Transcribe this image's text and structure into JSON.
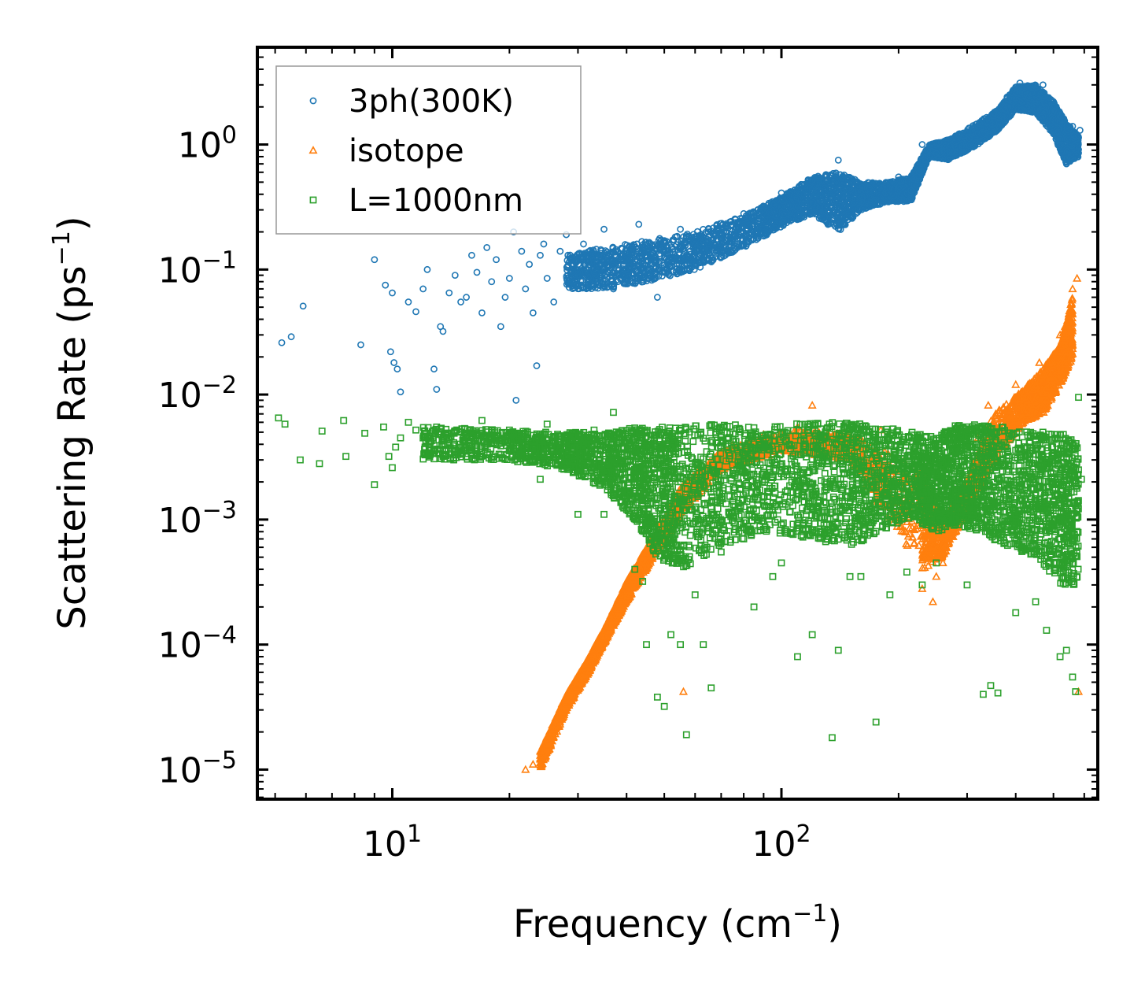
{
  "chart_data": {
    "type": "scatter",
    "title": "",
    "xlabel": "Frequency (cm",
    "xlabel_sup": "−1",
    "xlabel_end": ")",
    "ylabel": "Scattering Rate (ps",
    "ylabel_sup": "−1",
    "ylabel_end": ")",
    "xscale": "log",
    "yscale": "log",
    "xlim": [
      4.5,
      650
    ],
    "ylim": [
      5.8e-06,
      6.0
    ],
    "x_ticks": [
      {
        "value": 10,
        "base": "10",
        "exp": "1"
      },
      {
        "value": 100,
        "base": "10",
        "exp": "2"
      }
    ],
    "y_ticks": [
      {
        "value": 1,
        "base": "10",
        "exp": "0"
      },
      {
        "value": 0.1,
        "base": "10",
        "exp": "−1"
      },
      {
        "value": 0.01,
        "base": "10",
        "exp": "−2"
      },
      {
        "value": 0.001,
        "base": "10",
        "exp": "−3"
      },
      {
        "value": 0.0001,
        "base": "10",
        "exp": "−4"
      },
      {
        "value": 1e-05,
        "base": "10",
        "exp": "−5"
      }
    ],
    "legend_position": "upper-left",
    "series": [
      {
        "name": "3ph(300K)",
        "marker": "circle",
        "color": "#1f77b4",
        "points": [
          [
            5.2,
            0.026
          ],
          [
            5.5,
            0.029
          ],
          [
            5.9,
            0.051
          ],
          [
            8.3,
            0.025
          ],
          [
            9.0,
            0.12
          ],
          [
            9.6,
            0.075
          ],
          [
            9.9,
            0.022
          ],
          [
            10.0,
            0.065
          ],
          [
            10.1,
            0.018
          ],
          [
            10.3,
            0.016
          ],
          [
            10.5,
            0.0105
          ],
          [
            11.0,
            0.055
          ],
          [
            11.5,
            0.046
          ],
          [
            12.0,
            0.07
          ],
          [
            12.3,
            0.1
          ],
          [
            12.8,
            0.016
          ],
          [
            13.0,
            0.011
          ],
          [
            13.3,
            0.035
          ],
          [
            13.5,
            0.032
          ],
          [
            14.0,
            0.065
          ],
          [
            14.5,
            0.09
          ],
          [
            15.0,
            0.055
          ],
          [
            15.5,
            0.06
          ],
          [
            16.0,
            0.13
          ],
          [
            16.5,
            0.095
          ],
          [
            17.0,
            0.045
          ],
          [
            17.5,
            0.15
          ],
          [
            18.0,
            0.08
          ],
          [
            18.5,
            0.12
          ],
          [
            19.0,
            0.035
          ],
          [
            19.5,
            0.06
          ],
          [
            20.0,
            0.085
          ],
          [
            20.5,
            0.2
          ],
          [
            20.8,
            0.009
          ],
          [
            21.5,
            0.14
          ],
          [
            22.0,
            0.07
          ],
          [
            22.5,
            0.11
          ],
          [
            23.0,
            0.045
          ],
          [
            23.5,
            0.017
          ],
          [
            24.0,
            0.13
          ],
          [
            24.5,
            0.16
          ],
          [
            25.0,
            0.085
          ],
          [
            26.0,
            0.055
          ],
          [
            27.0,
            0.14
          ],
          [
            28.0,
            0.19
          ],
          [
            29.0,
            0.11
          ],
          [
            30.0,
            0.075
          ],
          [
            31.0,
            0.16
          ],
          [
            33.0,
            0.095
          ],
          [
            35.0,
            0.21
          ],
          [
            37.0,
            0.07
          ],
          [
            40.0,
            0.12
          ],
          [
            43.0,
            0.23
          ],
          [
            46.0,
            0.15
          ],
          [
            48.0,
            0.06
          ],
          [
            50.0,
            0.14
          ],
          [
            55.0,
            0.21
          ],
          [
            60.0,
            0.16
          ],
          [
            70.0,
            0.19
          ],
          [
            80.0,
            0.28
          ],
          [
            90.0,
            0.32
          ],
          [
            100.0,
            0.41
          ],
          [
            120.0,
            0.5
          ],
          [
            140.0,
            0.75
          ],
          [
            160.0,
            0.42
          ],
          [
            200.0,
            0.55
          ],
          [
            230.0,
            1.0
          ],
          [
            250.0,
            0.85
          ],
          [
            280.0,
            1.05
          ],
          [
            320.0,
            1.4
          ],
          [
            350.0,
            1.7
          ],
          [
            380.0,
            2.4
          ],
          [
            410.0,
            3.1
          ],
          [
            440.0,
            2.6
          ],
          [
            470.0,
            3.0
          ],
          [
            500.0,
            2.2
          ],
          [
            520.0,
            1.1
          ],
          [
            540.0,
            0.7
          ],
          [
            560.0,
            1.4
          ],
          [
            585.0,
            1.3
          ]
        ],
        "band": [
          [
            28,
            0.07,
            0.13
          ],
          [
            35,
            0.07,
            0.15
          ],
          [
            45,
            0.08,
            0.17
          ],
          [
            60,
            0.1,
            0.2
          ],
          [
            80,
            0.15,
            0.27
          ],
          [
            100,
            0.22,
            0.38
          ],
          [
            120,
            0.28,
            0.55
          ],
          [
            140,
            0.2,
            0.6
          ],
          [
            160,
            0.3,
            0.5
          ],
          [
            190,
            0.35,
            0.5
          ],
          [
            215,
            0.35,
            0.55
          ],
          [
            240,
            0.8,
            1.0
          ],
          [
            270,
            0.75,
            1.1
          ],
          [
            320,
            1.0,
            1.5
          ],
          [
            360,
            1.3,
            1.9
          ],
          [
            400,
            1.9,
            2.9
          ],
          [
            450,
            1.8,
            3.0
          ],
          [
            500,
            1.2,
            2.2
          ],
          [
            540,
            0.7,
            1.5
          ],
          [
            580,
            0.8,
            1.2
          ]
        ]
      },
      {
        "name": "isotope",
        "marker": "triangle",
        "color": "#ff7f0e",
        "points": [
          [
            22.0,
            1e-05
          ],
          [
            23.0,
            1.1e-05
          ],
          [
            24.0,
            1.4e-05
          ],
          [
            25.0,
            1.6e-05
          ],
          [
            26.0,
            2.1e-05
          ],
          [
            27.0,
            2.8e-05
          ],
          [
            28.0,
            3.6e-05
          ],
          [
            30.0,
            5e-05
          ],
          [
            32.0,
            7e-05
          ],
          [
            34.0,
            0.0001
          ],
          [
            36.0,
            0.00014
          ],
          [
            38.0,
            0.0002
          ],
          [
            40.0,
            0.00028
          ],
          [
            42.0,
            0.00037
          ],
          [
            44.0,
            0.00051
          ],
          [
            46.0,
            0.00065
          ],
          [
            49.0,
            0.00095
          ],
          [
            52.0,
            0.0013
          ],
          [
            56.0,
            4.2e-05
          ],
          [
            60.0,
            0.0018
          ],
          [
            65.0,
            0.0028
          ],
          [
            75.0,
            0.004
          ],
          [
            90.0,
            0.0048
          ],
          [
            110.0,
            0.0055
          ],
          [
            120.0,
            0.0082
          ],
          [
            150.0,
            0.0045
          ],
          [
            180.0,
            0.0052
          ],
          [
            230.0,
            0.00028
          ],
          [
            245.0,
            0.00022
          ],
          [
            250.0,
            0.00035
          ],
          [
            260.0,
            0.00045
          ],
          [
            270.0,
            0.0008
          ],
          [
            290.0,
            0.0012
          ],
          [
            300.0,
            0.0016
          ],
          [
            320.0,
            0.0045
          ],
          [
            340.0,
            0.0082
          ],
          [
            360.0,
            0.0052
          ],
          [
            400.0,
            0.012
          ],
          [
            430.0,
            0.012
          ],
          [
            460.0,
            0.018
          ],
          [
            490.0,
            0.014
          ],
          [
            520.0,
            0.03
          ],
          [
            545.0,
            0.035
          ],
          [
            560.0,
            0.07
          ],
          [
            575.0,
            0.085
          ],
          [
            580.0,
            4.2e-05
          ]
        ],
        "band": [
          [
            24,
            1e-05,
            1.4e-05
          ],
          [
            28,
            3e-05,
            4e-05
          ],
          [
            32,
            6e-05,
            8e-05
          ],
          [
            36,
            0.00012,
            0.00016
          ],
          [
            40,
            0.00022,
            0.00032
          ],
          [
            45,
            0.0004,
            0.0006
          ],
          [
            50,
            0.0007,
            0.001
          ],
          [
            55,
            0.0011,
            0.0018
          ],
          [
            70,
            0.0025,
            0.0035
          ],
          [
            100,
            0.0035,
            0.005
          ],
          [
            150,
            0.003,
            0.005
          ],
          [
            230,
            0.0004,
            0.0025
          ],
          [
            260,
            0.0005,
            0.001
          ],
          [
            300,
            0.0012,
            0.002
          ],
          [
            350,
            0.003,
            0.007
          ],
          [
            420,
            0.006,
            0.011
          ],
          [
            470,
            0.007,
            0.016
          ],
          [
            520,
            0.012,
            0.025
          ],
          [
            560,
            0.02,
            0.06
          ]
        ]
      },
      {
        "name": "L=1000nm",
        "marker": "square",
        "color": "#2ca02c",
        "points": [
          [
            5.1,
            0.0065
          ],
          [
            5.3,
            0.0058
          ],
          [
            5.8,
            0.003
          ],
          [
            6.5,
            0.0028
          ],
          [
            6.6,
            0.0051
          ],
          [
            7.5,
            0.0062
          ],
          [
            7.6,
            0.0032
          ],
          [
            8.5,
            0.0049
          ],
          [
            9.0,
            0.0019
          ],
          [
            9.5,
            0.0055
          ],
          [
            9.8,
            0.0032
          ],
          [
            10.0,
            0.0026
          ],
          [
            10.2,
            0.0038
          ],
          [
            10.5,
            0.0045
          ],
          [
            11.0,
            0.006
          ],
          [
            11.5,
            0.0052
          ],
          [
            12.0,
            0.0045
          ],
          [
            12.5,
            0.0038
          ],
          [
            13.0,
            0.0055
          ],
          [
            13.5,
            0.0032
          ],
          [
            14.0,
            0.0041
          ],
          [
            15.0,
            0.0036
          ],
          [
            16.0,
            0.0045
          ],
          [
            17.0,
            0.0062
          ],
          [
            18.0,
            0.0048
          ],
          [
            19.0,
            0.0033
          ],
          [
            20.0,
            0.0052
          ],
          [
            21.0,
            0.0029
          ],
          [
            22.0,
            0.0048
          ],
          [
            23.0,
            0.0037
          ],
          [
            24.0,
            0.0021
          ],
          [
            25.0,
            0.0058
          ],
          [
            26.0,
            0.0033
          ],
          [
            28.0,
            0.0047
          ],
          [
            30.0,
            0.0011
          ],
          [
            31.0,
            0.0041
          ],
          [
            33.0,
            0.0052
          ],
          [
            35.0,
            0.0011
          ],
          [
            37.0,
            0.0072
          ],
          [
            40.0,
            0.0012
          ],
          [
            42.0,
            0.0004
          ],
          [
            44.0,
            0.00032
          ],
          [
            45.0,
            0.0001
          ],
          [
            48.0,
            3.8e-05
          ],
          [
            50.0,
            3.2e-05
          ],
          [
            52.0,
            0.00012
          ],
          [
            55.0,
            0.0001
          ],
          [
            57.0,
            1.9e-05
          ],
          [
            60.0,
            0.00025
          ],
          [
            63.0,
            0.0001
          ],
          [
            66.0,
            4.5e-05
          ],
          [
            70.0,
            0.00055
          ],
          [
            80.0,
            0.0007
          ],
          [
            85.0,
            0.0002
          ],
          [
            95.0,
            0.00035
          ],
          [
            100.0,
            0.00045
          ],
          [
            110.0,
            8e-05
          ],
          [
            120.0,
            0.00012
          ],
          [
            135.0,
            1.8e-05
          ],
          [
            140.0,
            9e-05
          ],
          [
            150.0,
            0.00035
          ],
          [
            160.0,
            0.00035
          ],
          [
            175.0,
            2.4e-05
          ],
          [
            190.0,
            0.00025
          ],
          [
            210.0,
            0.00038
          ],
          [
            230.0,
            0.0003
          ],
          [
            250.0,
            0.00045
          ],
          [
            300.0,
            0.0003
          ],
          [
            330.0,
            4e-05
          ],
          [
            345.0,
            4.7e-05
          ],
          [
            360.0,
            4.1e-05
          ],
          [
            400.0,
            0.00018
          ],
          [
            450.0,
            0.00022
          ],
          [
            480.0,
            0.00013
          ],
          [
            520.0,
            8e-05
          ],
          [
            540.0,
            9e-05
          ],
          [
            560.0,
            5.5e-05
          ],
          [
            570.0,
            4.2e-05
          ],
          [
            580.0,
            0.0095
          ],
          [
            590.0,
            0.0021
          ]
        ],
        "band": [
          [
            12,
            0.003,
            0.0055
          ],
          [
            20,
            0.003,
            0.0052
          ],
          [
            28,
            0.0025,
            0.005
          ],
          [
            35,
            0.0018,
            0.005
          ],
          [
            42,
            0.001,
            0.0055
          ],
          [
            48,
            0.0005,
            0.0055
          ],
          [
            55,
            0.0004,
            0.0055
          ],
          [
            70,
            0.0006,
            0.006
          ],
          [
            90,
            0.0008,
            0.0055
          ],
          [
            120,
            0.0007,
            0.006
          ],
          [
            150,
            0.0006,
            0.006
          ],
          [
            180,
            0.0008,
            0.0055
          ],
          [
            220,
            0.001,
            0.005
          ],
          [
            250,
            0.0008,
            0.0045
          ],
          [
            280,
            0.0009,
            0.006
          ],
          [
            320,
            0.0008,
            0.0058
          ],
          [
            380,
            0.0006,
            0.0055
          ],
          [
            450,
            0.0005,
            0.005
          ],
          [
            520,
            0.0003,
            0.005
          ],
          [
            580,
            0.0003,
            0.004
          ]
        ]
      }
    ]
  }
}
